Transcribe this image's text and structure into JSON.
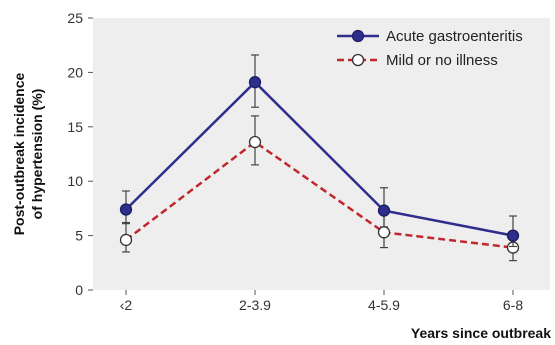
{
  "chart_data": {
    "type": "line",
    "title": "",
    "xlabel": "Years since outbreak",
    "ylabel": "Post-outbreak incidence of hypertension (%)",
    "ylabel_lines": [
      "Post-outbreak incidence",
      "of hypertension (%)"
    ],
    "categories": [
      "‹2",
      "2-3.9",
      "4-5.9",
      "6-8"
    ],
    "ylim": [
      0,
      25
    ],
    "yticks": [
      0,
      5,
      10,
      15,
      20,
      25
    ],
    "grid": false,
    "legend_position": "top-right",
    "series": [
      {
        "name": "Acute gastroenteritis",
        "values": [
          7.4,
          19.1,
          7.3,
          5.0
        ],
        "ci_low": [
          6.1,
          16.8,
          5.8,
          4.0
        ],
        "ci_high": [
          9.1,
          21.6,
          9.4,
          6.8
        ],
        "color": "#2e2f8c",
        "line_style": "solid",
        "marker": "filled-circle"
      },
      {
        "name": "Mild or no illness",
        "values": [
          4.6,
          13.6,
          5.3,
          3.9
        ],
        "ci_low": [
          3.5,
          11.5,
          3.9,
          2.7
        ],
        "ci_high": [
          6.2,
          16.0,
          6.9,
          5.2
        ],
        "color": "#c0282d",
        "line_style": "dashed",
        "marker": "open-circle"
      }
    ]
  }
}
